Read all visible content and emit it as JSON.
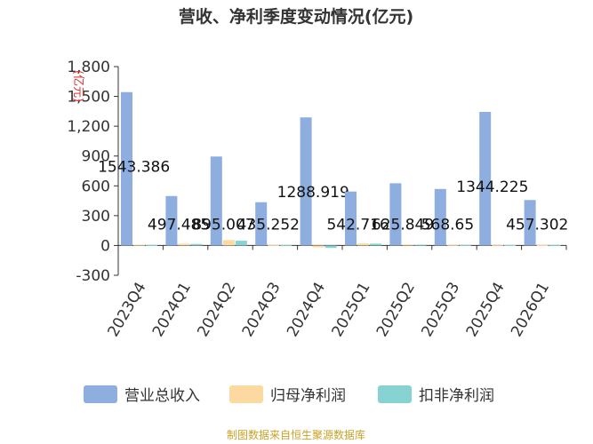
{
  "chart_data": {
    "type": "bar",
    "title": "营收、净利季度变动情况(亿元)",
    "ylabel": "(亿元)",
    "xlabel": "",
    "categories": [
      "2023Q4",
      "2024Q1",
      "2024Q2",
      "2024Q3",
      "2024Q4",
      "2025Q1",
      "2025Q2",
      "2025Q3",
      "2025Q4",
      "2026Q1"
    ],
    "series": [
      {
        "name": "营业总收入",
        "color": "#8eaedf",
        "values": [
          1543.386,
          497.485,
          895.007,
          435.252,
          1288.919,
          542.716,
          625.849,
          568.65,
          1344.225,
          457.302
        ]
      },
      {
        "name": "归母净利润",
        "color": "#fcd9a1",
        "values": [
          8,
          18,
          55,
          5,
          -18,
          20,
          10,
          6,
          6,
          4
        ]
      },
      {
        "name": "扣非净利润",
        "color": "#87d3d2",
        "values": [
          5,
          15,
          48,
          3,
          -25,
          18,
          8,
          5,
          4,
          3
        ]
      }
    ],
    "data_labels": [
      "1543.386",
      "497.485",
      "895.007",
      "435.252",
      "1288.919",
      "542.716",
      "625.849",
      "568.65",
      "1344.225",
      "457.302"
    ],
    "yticks": [
      "1,800",
      "1,500",
      "1,200",
      "900",
      "600",
      "300",
      "0",
      "-300"
    ],
    "ytick_values": [
      1800,
      1500,
      1200,
      900,
      600,
      300,
      0,
      -300
    ],
    "ylim": [
      -300,
      1800
    ],
    "grid": false,
    "legend_position": "bottom"
  },
  "source_text": "制图数据来自恒生聚源数据库"
}
